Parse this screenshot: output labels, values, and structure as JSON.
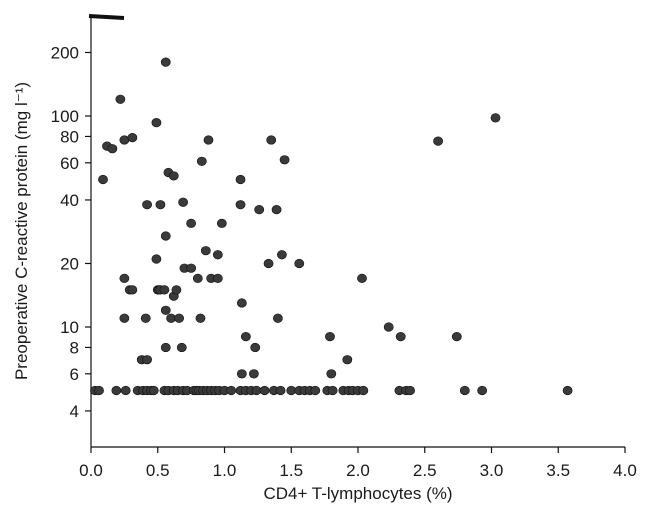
{
  "chart_data": {
    "type": "scatter",
    "xlabel": "CD4+ T-lymphocytes (%)",
    "ylabel": "Preoperative C-reactive protein (mg l⁻¹)",
    "y_scale": "log",
    "xlim": [
      0.0,
      4.0
    ],
    "ylim": [
      3.0,
      300
    ],
    "x_ticks": [
      "0.0",
      "0.5",
      "1.0",
      "1.5",
      "2.0",
      "2.5",
      "3.0",
      "3.5",
      "4.0"
    ],
    "y_ticks": [
      "4",
      "6",
      "8",
      "10",
      "20",
      "40",
      "60",
      "80",
      "100",
      "200"
    ],
    "grid": false,
    "legend": "none",
    "marker_color": "#3a3a3a",
    "points": [
      [
        0.09,
        50
      ],
      [
        0.12,
        72
      ],
      [
        0.16,
        70
      ],
      [
        0.22,
        120
      ],
      [
        0.25,
        77
      ],
      [
        0.31,
        79
      ],
      [
        0.49,
        93
      ],
      [
        0.56,
        180
      ],
      [
        0.58,
        54
      ],
      [
        0.62,
        52
      ],
      [
        0.88,
        77
      ],
      [
        0.83,
        61
      ],
      [
        1.35,
        77
      ],
      [
        1.45,
        62
      ],
      [
        2.6,
        76
      ],
      [
        3.03,
        98
      ],
      [
        0.42,
        38
      ],
      [
        0.52,
        38
      ],
      [
        0.56,
        27
      ],
      [
        0.69,
        39
      ],
      [
        0.75,
        31
      ],
      [
        0.98,
        31
      ],
      [
        1.12,
        50
      ],
      [
        1.12,
        38
      ],
      [
        1.26,
        36
      ],
      [
        1.39,
        36
      ],
      [
        0.25,
        17
      ],
      [
        0.29,
        15
      ],
      [
        0.31,
        15
      ],
      [
        0.49,
        21
      ],
      [
        0.5,
        15
      ],
      [
        0.51,
        15
      ],
      [
        0.52,
        15
      ],
      [
        0.55,
        15
      ],
      [
        0.62,
        14
      ],
      [
        0.64,
        15
      ],
      [
        0.7,
        19
      ],
      [
        0.75,
        19
      ],
      [
        0.8,
        17
      ],
      [
        0.86,
        23
      ],
      [
        0.9,
        17
      ],
      [
        0.95,
        17
      ],
      [
        0.95,
        22
      ],
      [
        1.33,
        20
      ],
      [
        1.43,
        22
      ],
      [
        1.56,
        20
      ],
      [
        2.03,
        17
      ],
      [
        0.25,
        11
      ],
      [
        0.41,
        11
      ],
      [
        0.56,
        12
      ],
      [
        0.6,
        11
      ],
      [
        0.66,
        11
      ],
      [
        0.82,
        11
      ],
      [
        1.13,
        13
      ],
      [
        1.4,
        11
      ],
      [
        2.23,
        10
      ],
      [
        0.38,
        7
      ],
      [
        0.42,
        7
      ],
      [
        0.56,
        8
      ],
      [
        0.68,
        8
      ],
      [
        1.16,
        9
      ],
      [
        1.23,
        8
      ],
      [
        1.79,
        9
      ],
      [
        1.92,
        7
      ],
      [
        2.32,
        9
      ],
      [
        2.74,
        9
      ],
      [
        1.13,
        6
      ],
      [
        1.22,
        6
      ],
      [
        1.8,
        6
      ],
      [
        0.03,
        5
      ],
      [
        0.06,
        5
      ],
      [
        0.19,
        5
      ],
      [
        0.26,
        5
      ],
      [
        0.35,
        5
      ],
      [
        0.39,
        5
      ],
      [
        0.42,
        5
      ],
      [
        0.45,
        5
      ],
      [
        0.47,
        5
      ],
      [
        0.55,
        5
      ],
      [
        0.58,
        5
      ],
      [
        0.62,
        5
      ],
      [
        0.65,
        5
      ],
      [
        0.69,
        5
      ],
      [
        0.72,
        5
      ],
      [
        0.77,
        5
      ],
      [
        0.79,
        5
      ],
      [
        0.81,
        5
      ],
      [
        0.84,
        5
      ],
      [
        0.87,
        5
      ],
      [
        0.9,
        5
      ],
      [
        0.93,
        5
      ],
      [
        0.96,
        5
      ],
      [
        1.0,
        5
      ],
      [
        1.05,
        5
      ],
      [
        1.12,
        5
      ],
      [
        1.16,
        5
      ],
      [
        1.2,
        5
      ],
      [
        1.24,
        5
      ],
      [
        1.3,
        5
      ],
      [
        1.37,
        5
      ],
      [
        1.42,
        5
      ],
      [
        1.5,
        5
      ],
      [
        1.56,
        5
      ],
      [
        1.6,
        5
      ],
      [
        1.64,
        5
      ],
      [
        1.68,
        5
      ],
      [
        1.77,
        5
      ],
      [
        1.81,
        5
      ],
      [
        1.89,
        5
      ],
      [
        1.93,
        5
      ],
      [
        1.96,
        5
      ],
      [
        2.0,
        5
      ],
      [
        2.04,
        5
      ],
      [
        2.31,
        5
      ],
      [
        2.36,
        5
      ],
      [
        2.39,
        5
      ],
      [
        2.8,
        5
      ],
      [
        2.93,
        5
      ],
      [
        3.57,
        5
      ]
    ]
  }
}
